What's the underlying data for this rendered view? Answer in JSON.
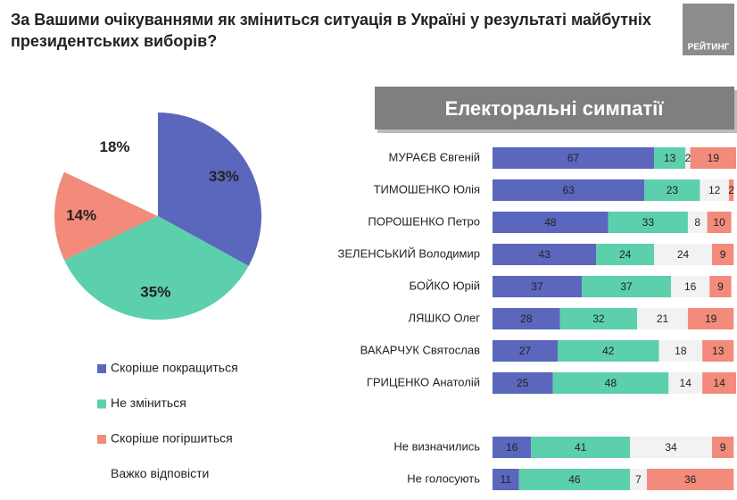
{
  "logo": "РЕЙТИНГ",
  "chart_data": [
    {
      "type": "pie",
      "title": "За Вашими очікуваннями як зміниться ситуація в Україні у результаті майбутніх президентських виборів?",
      "categories": [
        "Скоріше покращиться",
        "Не зміниться",
        "Скоріше погіршиться",
        "Важко відповісти"
      ],
      "values": [
        33,
        35,
        14,
        18
      ],
      "value_labels": [
        "33%",
        "35%",
        "14%",
        "18%"
      ],
      "colors": [
        "#5a67bd",
        "#5ccfad",
        "#f28b7c",
        "#ffffff"
      ]
    },
    {
      "type": "stacked-bar-horizontal",
      "title": "Електоральні симпатії",
      "categories": [
        "МУРАЄВ Євгеній",
        "ТИМОШЕНКО Юлія",
        "ПОРОШЕНКО Петро",
        "ЗЕЛЕНСЬКИЙ Володимир",
        "БОЙКО Юрій",
        "ЛЯШКО Олег",
        "ВАКАРЧУК Святослав",
        "ГРИЦЕНКО Анатолій",
        null,
        "Не визначились",
        "Не голосують"
      ],
      "xlim": [
        0,
        101
      ],
      "series": [
        {
          "color": "#5a67bd",
          "values": [
            67,
            63,
            48,
            43,
            37,
            28,
            27,
            25,
            null,
            16,
            11
          ]
        },
        {
          "color": "#5ccfad",
          "values": [
            13,
            23,
            33,
            24,
            37,
            32,
            42,
            48,
            null,
            41,
            46
          ]
        },
        {
          "color": "#f2f2f2",
          "values": [
            2,
            12,
            8,
            24,
            16,
            21,
            18,
            14,
            null,
            34,
            7
          ]
        },
        {
          "color": "#f28b7c",
          "values": [
            19,
            2,
            10,
            9,
            9,
            19,
            13,
            14,
            null,
            9,
            36
          ]
        }
      ]
    }
  ]
}
